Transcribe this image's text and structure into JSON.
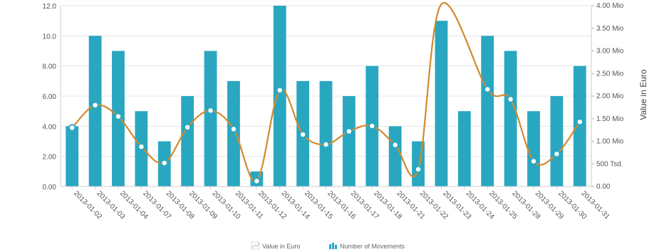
{
  "chart_data": {
    "type": "bar",
    "title": "",
    "xlabel": "",
    "ylabel_left": "",
    "ylabel_right": "Value in Euro",
    "categories": [
      "2013-01-02",
      "2013-01-03",
      "2013-01-04",
      "2013-01-07",
      "2013-01-08",
      "2013-01-09",
      "2013-01-10",
      "2013-01-11",
      "2013-01-12",
      "2013-01-14",
      "2013-01-15",
      "2013-01-16",
      "2013-01-17",
      "2013-01-18",
      "2013-01-21",
      "2013-01-22",
      "2013-01-23",
      "2013-01-24",
      "2013-01-25",
      "2013-01-28",
      "2013-01-29",
      "2013-01-30",
      "2013-01-31"
    ],
    "ylim_left": [
      0,
      12
    ],
    "ylim_right": [
      0,
      4000000
    ],
    "left_ticks": [
      "0.00",
      "2.00",
      "4.00",
      "6.00",
      "8.00",
      "10.0",
      "12.0"
    ],
    "right_ticks": [
      "0.00",
      "500 Tsd.",
      "1.00 Mio",
      "1.50 Mio",
      "2.00 Mio",
      "2.50 Mio",
      "3.00 Mio",
      "3.50 Mio",
      "4.00 Mio"
    ],
    "grid": true,
    "legend_position": "bottom-center",
    "series": [
      {
        "name": "Number of Movements",
        "type": "bar",
        "axis": "left",
        "color": "#2aa7c0",
        "values": [
          4,
          10,
          9,
          5,
          3,
          6,
          9,
          7,
          1,
          12,
          7,
          7,
          6,
          8,
          4,
          3,
          11,
          5,
          10,
          9,
          5,
          6,
          8
        ]
      },
      {
        "name": "Value in Euro",
        "type": "line",
        "axis": "right",
        "color": "#d38a2e",
        "values": [
          1300000,
          1800000,
          1550000,
          880000,
          520000,
          1310000,
          1680000,
          1270000,
          120000,
          2130000,
          1150000,
          930000,
          1220000,
          1340000,
          920000,
          380000,
          4150000,
          null,
          2150000,
          1930000,
          560000,
          720000,
          1430000
        ]
      }
    ]
  }
}
